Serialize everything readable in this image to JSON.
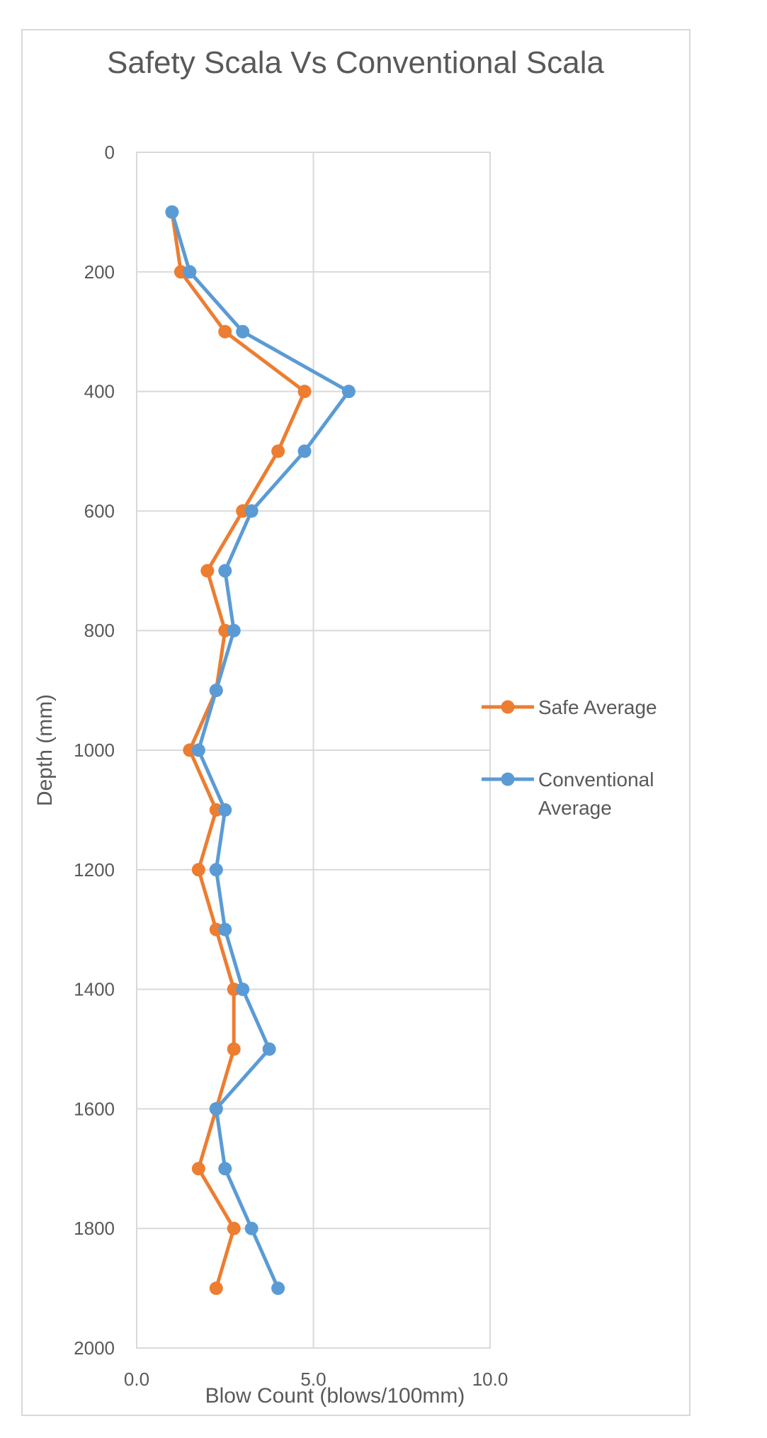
{
  "chart_data": {
    "type": "line",
    "title": "Safety Scala Vs Conventional Scala",
    "xlabel": "Blow Count (blows/100mm)",
    "ylabel": "Depth (mm)",
    "xlim": [
      0,
      10
    ],
    "ylim": [
      0,
      2000
    ],
    "y_inverted": true,
    "x_ticks": [
      "0.0",
      "5.0",
      "10.0"
    ],
    "x_tick_values": [
      0,
      5,
      10
    ],
    "y_ticks": [
      "0",
      "200",
      "400",
      "600",
      "800",
      "1000",
      "1200",
      "1400",
      "1600",
      "1800",
      "2000"
    ],
    "y_tick_values": [
      0,
      200,
      400,
      600,
      800,
      1000,
      1200,
      1400,
      1600,
      1800,
      2000
    ],
    "grid": true,
    "legend_position": "right",
    "series": [
      {
        "name": "Safe Average",
        "color": "#ED7D31",
        "depth": [
          100,
          200,
          300,
          400,
          500,
          600,
          700,
          800,
          900,
          1000,
          1100,
          1200,
          1300,
          1400,
          1500,
          1600,
          1700,
          1800,
          1900
        ],
        "values": [
          1.0,
          1.25,
          2.5,
          4.75,
          4.0,
          3.0,
          2.0,
          2.5,
          2.25,
          1.5,
          2.25,
          1.75,
          2.25,
          2.75,
          2.75,
          2.25,
          1.75,
          2.75,
          2.25
        ]
      },
      {
        "name": "Conventional Average",
        "color": "#5B9BD5",
        "depth": [
          100,
          200,
          300,
          400,
          500,
          600,
          700,
          800,
          900,
          1000,
          1100,
          1200,
          1300,
          1400,
          1500,
          1600,
          1700,
          1800,
          1900
        ],
        "values": [
          1.0,
          1.5,
          3.0,
          6.0,
          4.75,
          3.25,
          2.5,
          2.75,
          2.25,
          1.75,
          2.5,
          2.25,
          2.5,
          3.0,
          3.75,
          2.25,
          2.5,
          3.25,
          4.0
        ]
      }
    ],
    "legend": {
      "entries": [
        {
          "label_lines": [
            "Safe Average"
          ],
          "color": "#ED7D31"
        },
        {
          "label_lines": [
            "Conventional",
            "Average"
          ],
          "color": "#5B9BD5"
        }
      ]
    }
  }
}
